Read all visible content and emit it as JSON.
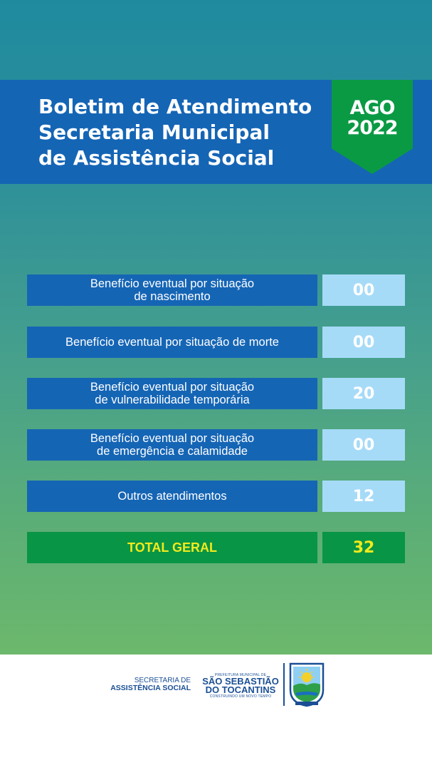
{
  "header": {
    "title_lines": [
      "Boletim de Atendimento",
      "Secretaria Municipal",
      "de Assistência Social"
    ],
    "badge_month": "AGO",
    "badge_year": "2022"
  },
  "rows": [
    {
      "label": "Benefício eventual por situação\nde nascimento",
      "value": "00"
    },
    {
      "label": "Benefício eventual por situação de morte",
      "value": "00"
    },
    {
      "label": "Benefício eventual por situação\nde vulnerabilidade temporária",
      "value": "20"
    },
    {
      "label": "Benefício eventual por situação\nde emergência e calamidade",
      "value": "00"
    },
    {
      "label": "Outros atendimentos",
      "value": "12"
    }
  ],
  "total": {
    "label": "TOTAL GERAL",
    "value": "32"
  },
  "footer": {
    "secretaria_line1": "SECRETARIA DE",
    "secretaria_line2": "ASSISTÊNCIA SOCIAL",
    "prefeitura_small": "PREFEITURA MUNICIPAL DE",
    "prefeitura_line1": "SÃO SEBASTIÃO",
    "prefeitura_line2": "DO TOCANTINS",
    "prefeitura_tagline": "CONSTRUINDO UM NOVO TEMPO",
    "crest_icon": "municipal-crest-icon"
  },
  "colors": {
    "header_blue": "#1565b5",
    "badge_green": "#0b9a44",
    "value_light_blue": "#a6dbf8",
    "total_green": "#089545",
    "total_text_yellow": "#f2ea1d"
  }
}
